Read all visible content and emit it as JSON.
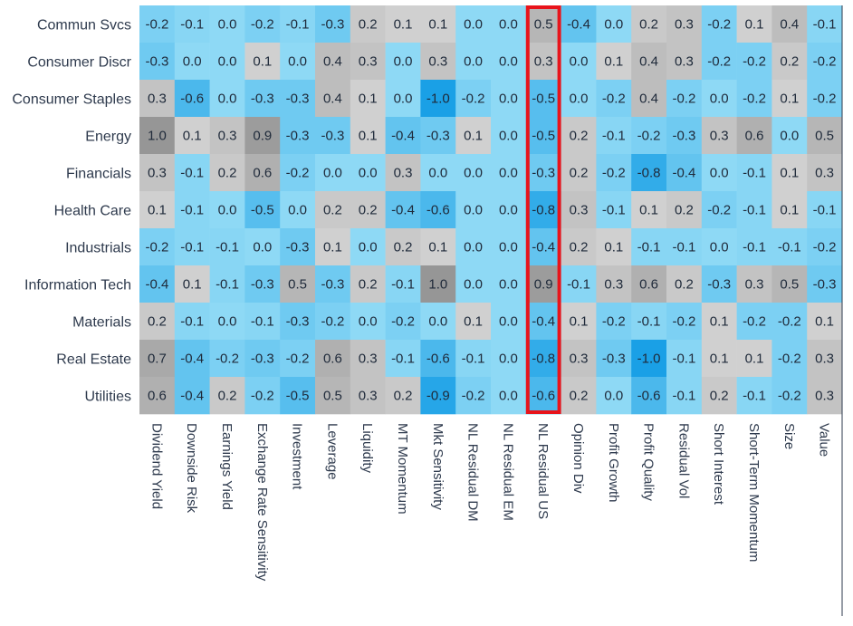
{
  "chart_data": {
    "type": "heatmap",
    "rows": [
      "Commun Svcs",
      "Consumer Discr",
      "Consumer Staples",
      "Energy",
      "Financials",
      "Health Care",
      "Industrials",
      "Information Tech",
      "Materials",
      "Real Estate",
      "Utilities"
    ],
    "columns": [
      "Dividend Yield",
      "Downside Risk",
      "Earnings Yield",
      "Exchange Rate Sensitivity",
      "Investment",
      "Leverage",
      "Liquidity",
      "MT Momentum",
      "Mkt Sensitivity",
      "NL Residual DM",
      "NL Residual EM",
      "NL Residual US",
      "Opinion Div",
      "Profit Growth",
      "Profit Quality",
      "Residual Vol",
      "Short Interest",
      "Short-Term Momentum",
      "Size",
      "Value"
    ],
    "values": [
      [
        -0.2,
        -0.1,
        0.0,
        -0.2,
        -0.1,
        -0.3,
        0.2,
        0.1,
        0.1,
        -0.0,
        0.0,
        0.5,
        -0.4,
        0.0,
        0.2,
        0.3,
        -0.2,
        0.1,
        0.4,
        -0.1
      ],
      [
        -0.3,
        -0.0,
        -0.0,
        0.1,
        0.0,
        0.4,
        0.3,
        -0.0,
        0.3,
        0.0,
        0.0,
        0.3,
        -0.0,
        0.1,
        0.4,
        0.3,
        -0.2,
        -0.2,
        0.2,
        -0.2
      ],
      [
        0.3,
        -0.6,
        -0.0,
        -0.3,
        -0.3,
        0.4,
        0.1,
        -0.0,
        -1.0,
        -0.2,
        0.0,
        -0.5,
        0.0,
        -0.2,
        0.4,
        -0.2,
        -0.0,
        -0.2,
        0.1,
        -0.2
      ],
      [
        1.0,
        0.1,
        0.3,
        0.9,
        -0.3,
        -0.3,
        0.1,
        -0.4,
        -0.3,
        0.1,
        0.0,
        -0.5,
        0.2,
        -0.1,
        -0.2,
        -0.3,
        0.3,
        0.6,
        0.0,
        0.5
      ],
      [
        0.3,
        -0.1,
        0.2,
        0.6,
        -0.2,
        0.0,
        -0.0,
        0.3,
        -0.0,
        0.0,
        -0.0,
        -0.3,
        0.2,
        -0.2,
        -0.8,
        -0.4,
        -0.0,
        -0.1,
        0.1,
        0.3
      ],
      [
        0.1,
        -0.1,
        -0.0,
        -0.5,
        0.0,
        0.2,
        0.2,
        -0.4,
        -0.6,
        0.0,
        0.0,
        -0.8,
        0.3,
        -0.1,
        0.1,
        0.2,
        -0.2,
        -0.1,
        0.1,
        -0.1
      ],
      [
        -0.2,
        -0.1,
        -0.1,
        -0.0,
        -0.3,
        0.1,
        0.0,
        0.2,
        0.1,
        -0.0,
        0.0,
        -0.4,
        0.2,
        0.1,
        -0.1,
        -0.1,
        -0.0,
        -0.1,
        -0.1,
        -0.2
      ],
      [
        -0.4,
        0.1,
        -0.1,
        -0.3,
        0.5,
        -0.3,
        0.2,
        -0.1,
        1.0,
        0.0,
        -0.0,
        0.9,
        -0.1,
        0.3,
        0.6,
        0.2,
        -0.3,
        0.3,
        0.5,
        -0.3
      ],
      [
        0.2,
        -0.1,
        -0.0,
        -0.1,
        -0.3,
        -0.2,
        0.0,
        -0.2,
        -0.0,
        0.1,
        -0.0,
        -0.4,
        0.1,
        -0.2,
        -0.1,
        -0.2,
        0.1,
        -0.2,
        -0.2,
        0.1
      ],
      [
        0.7,
        -0.4,
        -0.2,
        -0.3,
        -0.2,
        0.6,
        0.3,
        -0.1,
        -0.6,
        -0.1,
        0.0,
        -0.8,
        0.3,
        -0.3,
        -1.0,
        -0.1,
        0.1,
        0.1,
        -0.2,
        0.3
      ],
      [
        0.6,
        -0.4,
        0.2,
        -0.2,
        -0.5,
        0.5,
        0.3,
        0.2,
        -0.9,
        -0.2,
        0.0,
        -0.6,
        0.2,
        -0.0,
        -0.6,
        -0.1,
        0.2,
        -0.1,
        -0.2,
        0.3
      ]
    ],
    "highlighted_column": "NL Residual US",
    "colors": {
      "negative_base": "#8ed9f5",
      "negative_strong": "#1aa0e6",
      "positive_base": "#d3d3d3",
      "positive_strong": "#969696",
      "highlight_border": "#e8141b"
    },
    "legend": "none",
    "grid": false
  }
}
